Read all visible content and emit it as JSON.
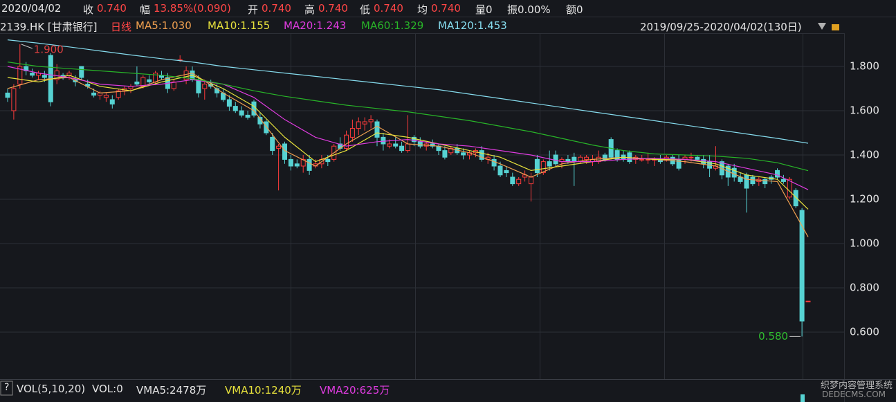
{
  "header": {
    "date": "2020/04/02",
    "close_label": "收",
    "close": "0.740",
    "change_label": "幅",
    "change": "13.85%(0.090)",
    "open_label": "开",
    "open": "0.740",
    "high_label": "高",
    "high": "0.740",
    "low_label": "低",
    "low": "0.740",
    "avg_label": "均",
    "avg": "0.740",
    "volume": "量0",
    "amplitude": "振0.00%",
    "amount": "额0"
  },
  "info": {
    "code": "2139.HK [甘肃银行]",
    "period": "日线",
    "range": "2019/09/25-2020/04/02(130日)"
  },
  "volume_bar": {
    "help": "?",
    "name": "VOL(5,10,20)",
    "vol": "VOL:0",
    "vma5": "VMA5:2478万",
    "vma10": "VMA10:1240万",
    "vma20": "VMA20:625万"
  },
  "watermark": {
    "line1": "织梦内容管理系统",
    "line2": "DEDECMS.COM"
  },
  "chart_data": {
    "type": "candlestick",
    "up_color": "#ff3c3c",
    "down_color": "#56d2d2",
    "ylim": [
      0.3875,
      1.95
    ],
    "yticks": [
      {
        "value": 1.8,
        "label": "1.800"
      },
      {
        "value": 1.6,
        "label": "1.600"
      },
      {
        "value": 1.4,
        "label": "1.400"
      },
      {
        "value": 1.2,
        "label": "1.200"
      },
      {
        "value": 1.0,
        "label": "1.000"
      },
      {
        "value": 0.8,
        "label": "0.800"
      },
      {
        "value": 0.6,
        "label": "0.600"
      }
    ],
    "grid": true,
    "max_marker": {
      "index": 2,
      "value": 1.9,
      "label": "1.900"
    },
    "min_marker": {
      "index": 129,
      "value": 0.58,
      "label": "0.580"
    },
    "candles": [
      [
        1.68,
        1.7,
        1.64,
        1.66
      ],
      [
        1.6,
        1.72,
        1.56,
        1.7
      ],
      [
        1.72,
        1.9,
        1.7,
        1.8
      ],
      [
        1.8,
        1.82,
        1.76,
        1.78
      ],
      [
        1.77,
        1.79,
        1.75,
        1.76
      ],
      [
        1.76,
        1.78,
        1.74,
        1.77
      ],
      [
        1.76,
        1.78,
        1.73,
        1.75
      ],
      [
        1.85,
        1.86,
        1.62,
        1.64
      ],
      [
        1.74,
        1.81,
        1.72,
        1.78
      ],
      [
        1.76,
        1.77,
        1.74,
        1.75
      ],
      [
        1.76,
        1.78,
        1.74,
        1.77
      ],
      [
        1.74,
        1.76,
        1.71,
        1.73
      ],
      [
        1.8,
        1.8,
        1.74,
        1.75
      ],
      [
        1.72,
        1.74,
        1.7,
        1.71
      ],
      [
        1.68,
        1.7,
        1.66,
        1.67
      ],
      [
        1.67,
        1.69,
        1.65,
        1.68
      ],
      [
        1.66,
        1.68,
        1.64,
        1.67
      ],
      [
        1.65,
        1.67,
        1.61,
        1.63
      ],
      [
        1.66,
        1.7,
        1.65,
        1.69
      ],
      [
        1.69,
        1.71,
        1.67,
        1.7
      ],
      [
        1.7,
        1.72,
        1.68,
        1.71
      ],
      [
        1.73,
        1.8,
        1.71,
        1.72
      ],
      [
        1.71,
        1.76,
        1.7,
        1.75
      ],
      [
        1.74,
        1.76,
        1.72,
        1.73
      ],
      [
        1.73,
        1.78,
        1.72,
        1.77
      ],
      [
        1.76,
        1.78,
        1.74,
        1.75
      ],
      [
        1.75,
        1.77,
        1.68,
        1.7
      ],
      [
        1.7,
        1.74,
        1.69,
        1.73
      ],
      [
        1.83,
        1.85,
        1.82,
        1.83
      ],
      [
        1.74,
        1.8,
        1.72,
        1.78
      ],
      [
        1.78,
        1.8,
        1.73,
        1.74
      ],
      [
        1.74,
        1.76,
        1.66,
        1.68
      ],
      [
        1.7,
        1.74,
        1.65,
        1.72
      ],
      [
        1.72,
        1.74,
        1.7,
        1.71
      ],
      [
        1.7,
        1.72,
        1.66,
        1.68
      ],
      [
        1.68,
        1.7,
        1.64,
        1.65
      ],
      [
        1.65,
        1.67,
        1.6,
        1.62
      ],
      [
        1.62,
        1.64,
        1.59,
        1.6
      ],
      [
        1.6,
        1.62,
        1.57,
        1.58
      ],
      [
        1.58,
        1.6,
        1.56,
        1.57
      ],
      [
        1.64,
        1.65,
        1.57,
        1.58
      ],
      [
        1.57,
        1.59,
        1.52,
        1.54
      ],
      [
        1.55,
        1.56,
        1.49,
        1.5
      ],
      [
        1.48,
        1.5,
        1.4,
        1.42
      ],
      [
        1.43,
        1.45,
        1.24,
        1.44
      ],
      [
        1.45,
        1.46,
        1.36,
        1.38
      ],
      [
        1.38,
        1.4,
        1.33,
        1.35
      ],
      [
        1.36,
        1.38,
        1.34,
        1.35
      ],
      [
        1.35,
        1.4,
        1.32,
        1.38
      ],
      [
        1.38,
        1.4,
        1.31,
        1.33
      ],
      [
        1.35,
        1.38,
        1.34,
        1.36
      ],
      [
        1.36,
        1.4,
        1.34,
        1.38
      ],
      [
        1.38,
        1.4,
        1.35,
        1.37
      ],
      [
        1.38,
        1.45,
        1.37,
        1.44
      ],
      [
        1.45,
        1.48,
        1.42,
        1.43
      ],
      [
        1.43,
        1.51,
        1.42,
        1.49
      ],
      [
        1.48,
        1.56,
        1.46,
        1.52
      ],
      [
        1.52,
        1.57,
        1.49,
        1.55
      ],
      [
        1.54,
        1.57,
        1.51,
        1.55
      ],
      [
        1.55,
        1.58,
        1.52,
        1.56
      ],
      [
        1.55,
        1.56,
        1.44,
        1.48
      ],
      [
        1.48,
        1.5,
        1.42,
        1.45
      ],
      [
        1.44,
        1.47,
        1.43,
        1.45
      ],
      [
        1.45,
        1.48,
        1.43,
        1.44
      ],
      [
        1.44,
        1.46,
        1.41,
        1.42
      ],
      [
        1.42,
        1.58,
        1.41,
        1.45
      ],
      [
        1.48,
        1.49,
        1.44,
        1.46
      ],
      [
        1.46,
        1.48,
        1.43,
        1.44
      ],
      [
        1.44,
        1.46,
        1.42,
        1.45
      ],
      [
        1.45,
        1.47,
        1.43,
        1.44
      ],
      [
        1.44,
        1.45,
        1.4,
        1.42
      ],
      [
        1.42,
        1.44,
        1.38,
        1.39
      ],
      [
        1.41,
        1.44,
        1.4,
        1.43
      ],
      [
        1.43,
        1.45,
        1.4,
        1.41
      ],
      [
        1.41,
        1.43,
        1.38,
        1.4
      ],
      [
        1.4,
        1.42,
        1.38,
        1.41
      ],
      [
        1.41,
        1.43,
        1.39,
        1.42
      ],
      [
        1.42,
        1.44,
        1.37,
        1.38
      ],
      [
        1.38,
        1.41,
        1.36,
        1.39
      ],
      [
        1.38,
        1.4,
        1.33,
        1.35
      ],
      [
        1.35,
        1.37,
        1.3,
        1.31
      ],
      [
        1.33,
        1.35,
        1.3,
        1.32
      ],
      [
        1.3,
        1.32,
        1.26,
        1.27
      ],
      [
        1.27,
        1.3,
        1.26,
        1.29
      ],
      [
        1.3,
        1.33,
        1.28,
        1.31
      ],
      [
        1.27,
        1.32,
        1.19,
        1.3
      ],
      [
        1.38,
        1.4,
        1.3,
        1.32
      ],
      [
        1.32,
        1.38,
        1.31,
        1.37
      ],
      [
        1.37,
        1.42,
        1.33,
        1.35
      ],
      [
        1.4,
        1.42,
        1.35,
        1.36
      ],
      [
        1.37,
        1.39,
        1.34,
        1.38
      ],
      [
        1.38,
        1.4,
        1.36,
        1.37
      ],
      [
        1.39,
        1.41,
        1.26,
        1.37
      ],
      [
        1.37,
        1.4,
        1.36,
        1.39
      ],
      [
        1.38,
        1.4,
        1.36,
        1.39
      ],
      [
        1.37,
        1.4,
        1.35,
        1.38
      ],
      [
        1.37,
        1.42,
        1.36,
        1.39
      ],
      [
        1.4,
        1.41,
        1.37,
        1.38
      ],
      [
        1.47,
        1.48,
        1.38,
        1.39
      ],
      [
        1.42,
        1.43,
        1.37,
        1.38
      ],
      [
        1.4,
        1.42,
        1.37,
        1.38
      ],
      [
        1.41,
        1.42,
        1.36,
        1.37
      ],
      [
        1.38,
        1.4,
        1.36,
        1.39
      ],
      [
        1.38,
        1.4,
        1.37,
        1.38
      ],
      [
        1.38,
        1.41,
        1.36,
        1.38
      ],
      [
        1.38,
        1.39,
        1.35,
        1.38
      ],
      [
        1.38,
        1.4,
        1.36,
        1.37
      ],
      [
        1.38,
        1.4,
        1.37,
        1.39
      ],
      [
        1.39,
        1.4,
        1.35,
        1.36
      ],
      [
        1.38,
        1.4,
        1.33,
        1.34
      ],
      [
        1.38,
        1.4,
        1.36,
        1.39
      ],
      [
        1.39,
        1.41,
        1.37,
        1.39
      ],
      [
        1.39,
        1.4,
        1.37,
        1.38
      ],
      [
        1.38,
        1.4,
        1.34,
        1.36
      ],
      [
        1.37,
        1.4,
        1.3,
        1.34
      ],
      [
        1.34,
        1.44,
        1.33,
        1.35
      ],
      [
        1.37,
        1.38,
        1.29,
        1.31
      ],
      [
        1.35,
        1.36,
        1.26,
        1.3
      ],
      [
        1.34,
        1.36,
        1.28,
        1.3
      ],
      [
        1.3,
        1.32,
        1.27,
        1.28
      ],
      [
        1.31,
        1.32,
        1.14,
        1.25
      ],
      [
        1.3,
        1.31,
        1.26,
        1.27
      ],
      [
        1.28,
        1.3,
        1.26,
        1.29
      ],
      [
        1.29,
        1.3,
        1.25,
        1.27
      ],
      [
        1.3,
        1.31,
        1.27,
        1.29
      ],
      [
        1.33,
        1.34,
        1.29,
        1.3
      ],
      [
        1.29,
        1.31,
        1.27,
        1.28
      ],
      [
        1.21,
        1.3,
        1.2,
        1.29
      ],
      [
        1.24,
        1.25,
        1.16,
        1.17
      ],
      [
        1.15,
        1.16,
        0.58,
        0.65
      ],
      [
        0.74,
        0.74,
        0.74,
        0.74
      ]
    ],
    "ma_x": [
      0,
      5,
      10,
      15,
      20,
      25,
      30,
      35,
      40,
      45,
      50,
      55,
      60,
      65,
      70,
      75,
      80,
      85,
      90,
      95,
      100,
      105,
      110,
      115,
      120,
      125,
      130
    ],
    "series": [
      {
        "name": "MA5:1.030",
        "color": "#f0a050",
        "values": [
          1.7,
          1.74,
          1.75,
          1.68,
          1.69,
          1.74,
          1.77,
          1.68,
          1.6,
          1.42,
          1.35,
          1.45,
          1.53,
          1.45,
          1.44,
          1.41,
          1.36,
          1.3,
          1.36,
          1.38,
          1.39,
          1.38,
          1.37,
          1.35,
          1.29,
          1.28,
          1.03
        ]
      },
      {
        "name": "MA10:1.155",
        "color": "#e8e23c",
        "values": [
          1.75,
          1.73,
          1.76,
          1.71,
          1.69,
          1.73,
          1.76,
          1.7,
          1.62,
          1.48,
          1.37,
          1.42,
          1.5,
          1.48,
          1.45,
          1.42,
          1.39,
          1.33,
          1.35,
          1.37,
          1.39,
          1.38,
          1.38,
          1.36,
          1.31,
          1.29,
          1.155
        ]
      },
      {
        "name": "MA20:1.243",
        "color": "#e03ce0",
        "values": [
          1.8,
          1.77,
          1.75,
          1.72,
          1.71,
          1.72,
          1.74,
          1.72,
          1.66,
          1.56,
          1.48,
          1.44,
          1.46,
          1.47,
          1.45,
          1.44,
          1.42,
          1.4,
          1.37,
          1.37,
          1.38,
          1.385,
          1.38,
          1.37,
          1.34,
          1.31,
          1.243
        ]
      },
      {
        "name": "MA60:1.329",
        "color": "#28b428",
        "values": [
          1.82,
          1.8,
          1.79,
          1.78,
          1.77,
          1.76,
          1.745,
          1.72,
          1.69,
          1.665,
          1.645,
          1.625,
          1.61,
          1.595,
          1.575,
          1.555,
          1.53,
          1.505,
          1.475,
          1.445,
          1.42,
          1.405,
          1.4,
          1.395,
          1.385,
          1.365,
          1.329
        ]
      },
      {
        "name": "MA120:1.453",
        "color": "#86dcee",
        "values": [
          1.92,
          1.905,
          1.888,
          1.87,
          1.852,
          1.835,
          1.82,
          1.8,
          1.785,
          1.77,
          1.755,
          1.74,
          1.725,
          1.71,
          1.695,
          1.675,
          1.655,
          1.635,
          1.615,
          1.595,
          1.575,
          1.555,
          1.535,
          1.515,
          1.495,
          1.475,
          1.453
        ]
      }
    ]
  }
}
